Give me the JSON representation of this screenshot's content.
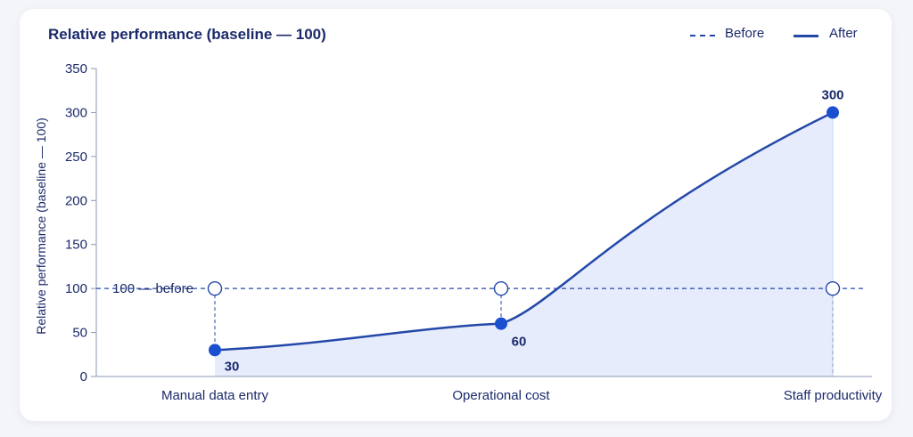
{
  "chart_data": {
    "type": "line",
    "title": "Relative performance (baseline — 100)",
    "ylabel": "Relative performance (baseline — 100)",
    "xlabel": "",
    "categories": [
      "Manual data entry",
      "Operational cost",
      "Staff productivity"
    ],
    "ylim": [
      0,
      350
    ],
    "yticks": [
      0,
      50,
      100,
      150,
      200,
      250,
      300,
      350
    ],
    "series": [
      {
        "name": "Before",
        "values": [
          100,
          100,
          100
        ],
        "style": "dashed",
        "marker": "hollow-circle"
      },
      {
        "name": "After",
        "values": [
          30,
          60,
          300
        ],
        "style": "solid",
        "marker": "filled-circle",
        "area_fill": true,
        "data_labels": [
          "30",
          "60",
          "300"
        ]
      }
    ],
    "reference_line_label": "100 — before",
    "legend": "top-right",
    "grid": false,
    "colors": {
      "line": "#2448a8",
      "area": "#e2e9fb",
      "text": "#1b2a6b",
      "axis": "#8e97b8"
    }
  }
}
